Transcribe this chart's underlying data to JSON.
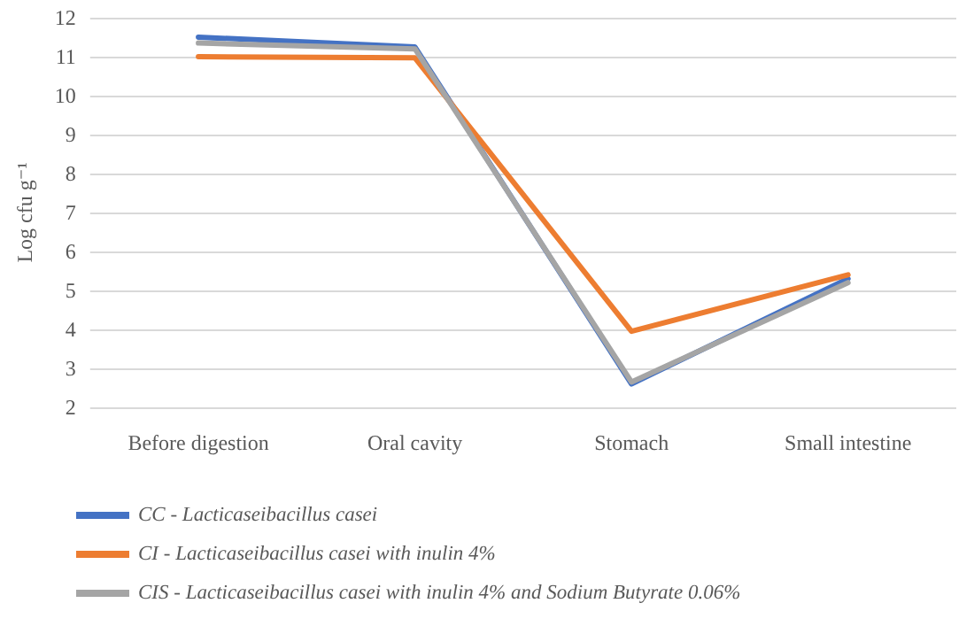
{
  "chart_data": {
    "type": "line",
    "ylabel": "Log cfu g⁻¹",
    "categories": [
      "Before digestion",
      "Oral cavity",
      "Stomach",
      "Small intestine"
    ],
    "series": [
      {
        "name": "CC - Lacticaseibacillus casei",
        "color": "#4472c4",
        "values": [
          11.5,
          11.25,
          2.6,
          5.3
        ]
      },
      {
        "name": "CI - Lacticaseibacillus casei with inulin 4%",
        "color": "#ed7d31",
        "values": [
          11.0,
          10.97,
          3.95,
          5.4
        ]
      },
      {
        "name": "CIS - Lacticaseibacillus casei with inulin 4% and Sodium Butyrate 0.06%",
        "color": "#a5a5a5",
        "values": [
          11.35,
          11.2,
          2.65,
          5.2
        ]
      }
    ],
    "ylim": [
      2,
      12
    ],
    "yticks": [
      2,
      3,
      4,
      5,
      6,
      7,
      8,
      9,
      10,
      11,
      12
    ],
    "grid": "y",
    "legend": "bottom",
    "marker": "none",
    "line_style": "solid"
  }
}
